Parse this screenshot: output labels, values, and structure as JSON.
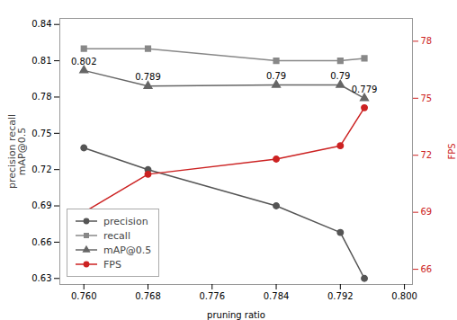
{
  "chart_data": {
    "type": "line",
    "xlabel": "pruning ratio",
    "ylabel": "precision recall\nmAP@0.5",
    "y2label": "FPS",
    "x": [
      0.76,
      0.768,
      0.784,
      0.792,
      0.795
    ],
    "series": [
      {
        "name": "precision",
        "color": "#555555",
        "marker": "circle",
        "values": [
          0.738,
          0.72,
          0.69,
          0.668,
          0.63
        ]
      },
      {
        "name": "recall",
        "color": "#888888",
        "marker": "square",
        "values": [
          0.82,
          0.82,
          0.81,
          0.81,
          0.812
        ]
      },
      {
        "name": "mAP@0.5",
        "color": "#666666",
        "marker": "triangle",
        "data_labels": true,
        "values": [
          0.802,
          0.789,
          0.79,
          0.79,
          0.779
        ]
      },
      {
        "name": "FPS",
        "color": "#cc2222",
        "marker": "circle",
        "axis": "y2",
        "values": [
          69.0,
          71.0,
          71.8,
          72.5,
          74.5
        ]
      }
    ],
    "xlim": [
      0.757,
      0.801
    ],
    "xticks": [
      {
        "value": 0.76,
        "label": "0.760"
      },
      {
        "value": 0.768,
        "label": "0.768"
      },
      {
        "value": 0.776,
        "label": "0.776"
      },
      {
        "value": 0.784,
        "label": "0.784"
      },
      {
        "value": 0.792,
        "label": "0.792"
      },
      {
        "value": 0.8,
        "label": "0.800"
      }
    ],
    "ylim": [
      0.625,
      0.845
    ],
    "yticks": [
      0.63,
      0.66,
      0.69,
      0.72,
      0.75,
      0.78,
      0.81,
      0.84
    ],
    "y2lim": [
      65.2,
      79.2
    ],
    "y2ticks": [
      66,
      69,
      72,
      75,
      78
    ],
    "grid": false,
    "legend": "lower left"
  }
}
